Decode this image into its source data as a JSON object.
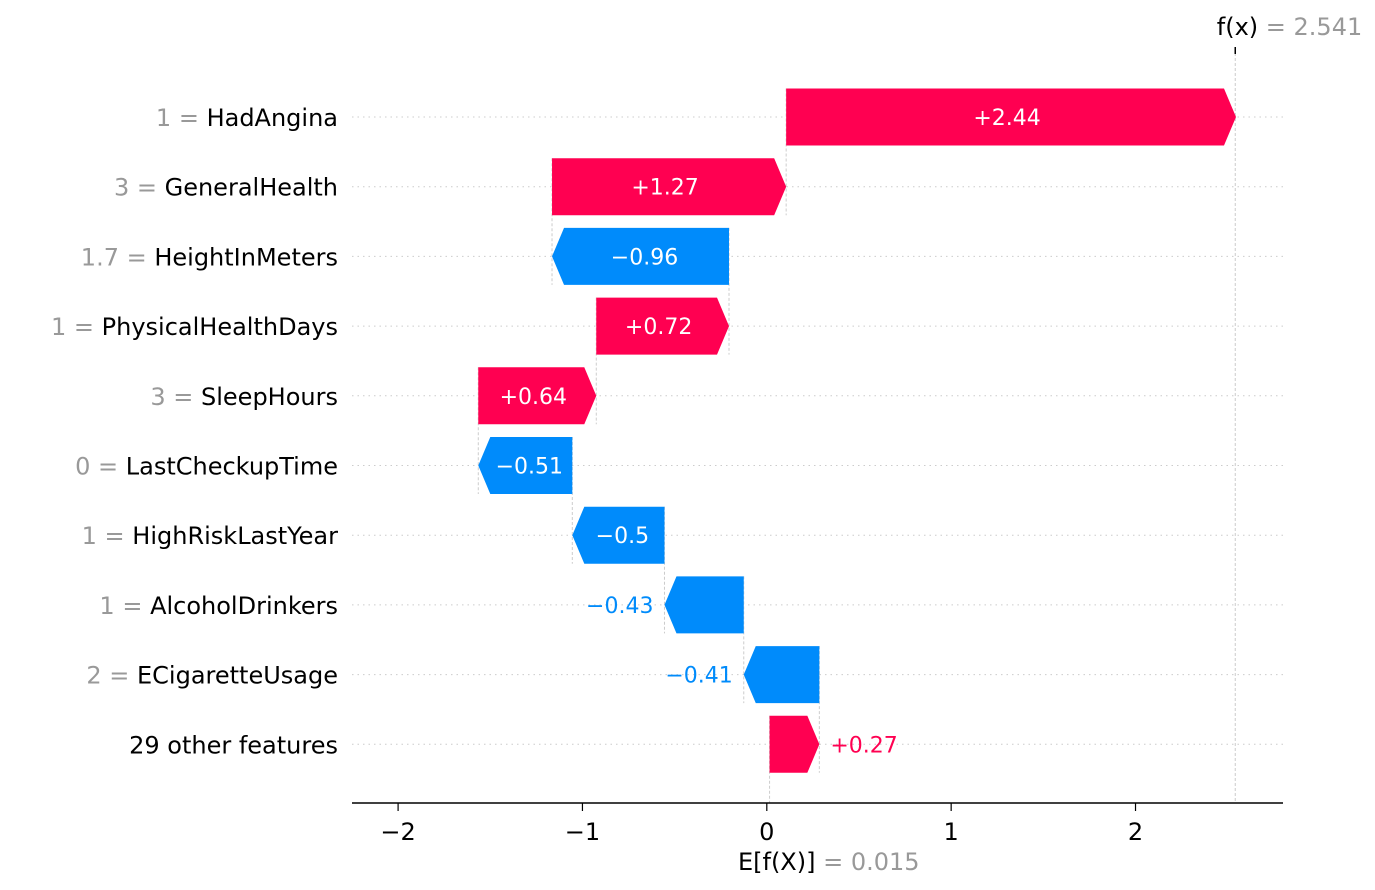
{
  "chart_data": {
    "type": "waterfall",
    "colors": {
      "positive": "#ff0051",
      "negative": "#008bfb",
      "value_label": "#999999",
      "text": "#000000",
      "inner_text": "#ffffff",
      "grid": "#cccccc"
    },
    "fx": {
      "label": "f(x)",
      "value_text": "= 2.541",
      "value": 2.541
    },
    "efx": {
      "label": "E[f(X)]",
      "value_text": "= 0.015",
      "value": 0.015
    },
    "xlim": [
      -2.25,
      2.8
    ],
    "xticks": [
      {
        "value": -2,
        "label": "−2"
      },
      {
        "value": -1,
        "label": "−1"
      },
      {
        "value": 0,
        "label": "0"
      },
      {
        "value": 1,
        "label": "1"
      },
      {
        "value": 2,
        "label": "2"
      }
    ],
    "features": [
      {
        "value": "1 =",
        "name": "HadAngina",
        "shap": 2.44,
        "label": "+2.44"
      },
      {
        "value": "3 =",
        "name": "GeneralHealth",
        "shap": 1.27,
        "label": "+1.27"
      },
      {
        "value": "1.7 =",
        "name": "HeightInMeters",
        "shap": -0.96,
        "label": "−0.96"
      },
      {
        "value": "1 =",
        "name": "PhysicalHealthDays",
        "shap": 0.72,
        "label": "+0.72"
      },
      {
        "value": "3 =",
        "name": "SleepHours",
        "shap": 0.64,
        "label": "+0.64"
      },
      {
        "value": "0 =",
        "name": "LastCheckupTime",
        "shap": -0.51,
        "label": "−0.51"
      },
      {
        "value": "1 =",
        "name": "HighRiskLastYear",
        "shap": -0.5,
        "label": "−0.5"
      },
      {
        "value": "1 =",
        "name": "AlcoholDrinkers",
        "shap": -0.43,
        "label": "−0.43"
      },
      {
        "value": "2 =",
        "name": "ECigaretteUsage",
        "shap": -0.41,
        "label": "−0.41"
      },
      {
        "value": "",
        "name": "29 other features",
        "shap": 0.27,
        "label": "+0.27"
      }
    ]
  }
}
